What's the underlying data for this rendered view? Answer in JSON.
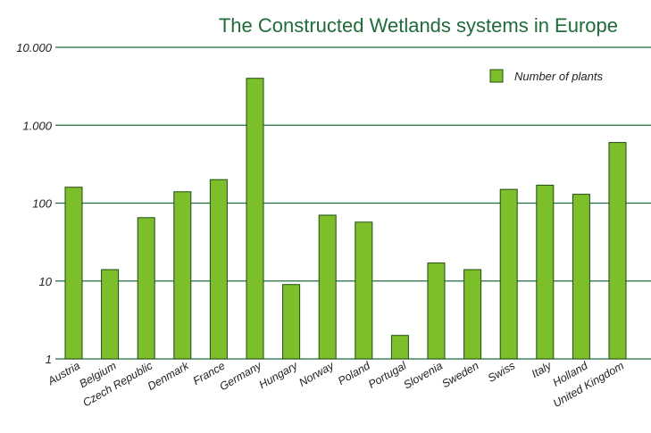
{
  "colors": {
    "bar_fill": "#7cbf2a",
    "bar_stroke": "#1e4d12",
    "grid": "#1f6b3a",
    "title": "#1f6b3a"
  },
  "chart_data": {
    "type": "bar",
    "title": "The Constructed Wetlands systems in Europe",
    "xlabel": "",
    "ylabel": "",
    "y_scale": "log",
    "ylim": [
      1,
      10000
    ],
    "grid": true,
    "legend_position": "top-right",
    "y_ticks": [
      {
        "value": 10000,
        "label": "10.000"
      },
      {
        "value": 1000,
        "label": "1.000"
      },
      {
        "value": 100,
        "label": "100"
      },
      {
        "value": 10,
        "label": "10"
      },
      {
        "value": 1,
        "label": "1"
      }
    ],
    "categories": [
      "Austria",
      "Belgium",
      "Czech Republic",
      "Denmark",
      "France",
      "Germany",
      "Hungary",
      "Norway",
      "Poland",
      "Portugal",
      "Slovenia",
      "Sweden",
      "Swiss",
      "Italy",
      "Holland",
      "United Kingdom"
    ],
    "series": [
      {
        "name": "Number of plants",
        "values": [
          160,
          14,
          65,
          140,
          200,
          4000,
          9,
          70,
          57,
          2,
          17,
          14,
          150,
          170,
          130,
          600
        ]
      }
    ]
  }
}
